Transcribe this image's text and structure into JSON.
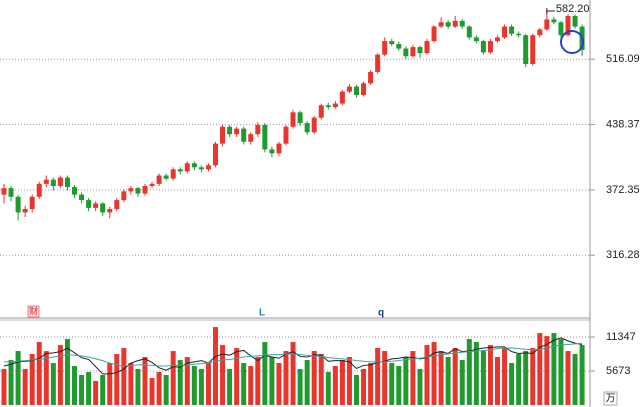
{
  "chart_data": [
    {
      "type": "candlestick",
      "log": true,
      "ylim": [
        270.4,
        598.4
      ],
      "yticks": [
        516.09,
        438.37,
        372.35,
        316.28
      ],
      "grid": true,
      "up_color": "#e8352e",
      "down_color": "#1e9a2e",
      "annotation": "582.20",
      "markers": [
        "财",
        "L",
        "q"
      ],
      "values": [
        [
          368,
          378,
          360,
          374
        ],
        [
          374,
          376,
          362,
          366
        ],
        [
          366,
          368,
          345,
          352
        ],
        [
          352,
          358,
          348,
          355
        ],
        [
          355,
          368,
          352,
          366
        ],
        [
          366,
          380,
          364,
          378
        ],
        [
          378,
          386,
          375,
          382
        ],
        [
          382,
          384,
          372,
          376
        ],
        [
          376,
          386,
          374,
          384
        ],
        [
          384,
          386,
          372,
          375
        ],
        [
          375,
          377,
          365,
          368
        ],
        [
          368,
          370,
          360,
          363
        ],
        [
          363,
          365,
          353,
          356
        ],
        [
          356,
          362,
          353,
          360
        ],
        [
          360,
          361,
          349,
          352
        ],
        [
          352,
          357,
          347,
          355
        ],
        [
          355,
          365,
          353,
          363
        ],
        [
          363,
          373,
          361,
          371
        ],
        [
          371,
          376,
          368,
          374
        ],
        [
          374,
          375,
          366,
          369
        ],
        [
          369,
          378,
          367,
          376
        ],
        [
          376,
          380,
          374,
          378
        ],
        [
          378,
          388,
          376,
          386
        ],
        [
          386,
          388,
          381,
          383
        ],
        [
          383,
          394,
          381,
          392
        ],
        [
          392,
          394,
          387,
          390
        ],
        [
          390,
          400,
          388,
          398
        ],
        [
          398,
          400,
          391,
          394
        ],
        [
          394,
          396,
          389,
          392
        ],
        [
          392,
          398,
          390,
          396
        ],
        [
          396,
          420,
          394,
          418
        ],
        [
          418,
          438,
          415,
          436
        ],
        [
          436,
          438,
          425,
          428
        ],
        [
          428,
          436,
          425,
          434
        ],
        [
          434,
          436,
          417,
          420
        ],
        [
          420,
          430,
          417,
          428
        ],
        [
          428,
          441,
          425,
          438
        ],
        [
          438,
          440,
          409,
          412
        ],
        [
          412,
          415,
          404,
          408
        ],
        [
          408,
          420,
          405,
          418
        ],
        [
          418,
          438,
          416,
          436
        ],
        [
          436,
          455,
          434,
          452
        ],
        [
          452,
          454,
          437,
          440
        ],
        [
          440,
          442,
          427,
          430
        ],
        [
          430,
          448,
          428,
          446
        ],
        [
          446,
          462,
          444,
          460
        ],
        [
          460,
          463,
          455,
          458
        ],
        [
          458,
          465,
          456,
          462
        ],
        [
          462,
          478,
          460,
          476
        ],
        [
          476,
          485,
          474,
          482
        ],
        [
          482,
          484,
          469,
          472
        ],
        [
          472,
          488,
          470,
          486
        ],
        [
          486,
          502,
          484,
          500
        ],
        [
          500,
          524,
          498,
          522
        ],
        [
          522,
          545,
          520,
          540
        ],
        [
          540,
          543,
          533,
          536
        ],
        [
          536,
          539,
          527,
          530
        ],
        [
          530,
          533,
          516,
          520
        ],
        [
          520,
          535,
          518,
          532
        ],
        [
          532,
          534,
          518,
          524
        ],
        [
          524,
          543,
          522,
          540
        ],
        [
          540,
          562,
          538,
          560
        ],
        [
          560,
          573,
          558,
          566
        ],
        [
          566,
          569,
          557,
          560
        ],
        [
          560,
          575,
          558,
          568
        ],
        [
          568,
          571,
          557,
          560
        ],
        [
          560,
          562,
          542,
          545
        ],
        [
          545,
          548,
          537,
          540
        ],
        [
          540,
          542,
          522,
          525
        ],
        [
          525,
          543,
          523,
          540
        ],
        [
          540,
          548,
          538,
          545
        ],
        [
          545,
          563,
          543,
          560
        ],
        [
          560,
          563,
          547,
          550
        ],
        [
          550,
          553,
          545,
          548
        ],
        [
          548,
          550,
          506,
          510
        ],
        [
          510,
          550,
          508,
          548
        ],
        [
          548,
          558,
          545,
          556
        ],
        [
          556,
          582.2,
          554,
          570
        ],
        [
          570,
          574,
          563,
          566
        ],
        [
          566,
          568,
          545,
          548
        ],
        [
          548,
          578,
          546,
          575
        ],
        [
          575,
          577,
          557,
          560
        ],
        [
          560,
          563,
          520,
          528
        ]
      ]
    },
    {
      "type": "volume",
      "ylim": [
        0,
        14180
      ],
      "yticks": [
        11347,
        5673
      ],
      "grid": true,
      "unit": "万",
      "values": [
        6000,
        7500,
        9000,
        6000,
        8500,
        10500,
        9000,
        7000,
        10000,
        11000,
        6500,
        5000,
        5500,
        4000,
        5000,
        7000,
        8500,
        9500,
        7000,
        6000,
        8000,
        4500,
        5500,
        5000,
        9000,
        7500,
        8000,
        6500,
        6000,
        7000,
        13000,
        10000,
        6000,
        9500,
        7000,
        6500,
        8000,
        10500,
        8000,
        7000,
        9000,
        10500,
        6000,
        7500,
        9000,
        8500,
        5500,
        6500,
        7500,
        8000,
        5000,
        6000,
        7000,
        9500,
        9000,
        7000,
        6500,
        8000,
        9000,
        6000,
        10000,
        10500,
        9000,
        8000,
        9500,
        7500,
        11000,
        10500,
        9000,
        10000,
        8000,
        9500,
        7000,
        8500,
        9000,
        9500,
        12000,
        11500,
        12000,
        11000,
        9000,
        8500,
        10000
      ],
      "lines": [
        {
          "color": "#222222",
          "values": [
            6500,
            6800,
            7200,
            7300,
            7400,
            7800,
            8600,
            8700,
            8900,
            9500,
            8700,
            7900,
            7600,
            6400,
            5200,
            5200,
            5400,
            6000,
            7000,
            7400,
            7700,
            7100,
            6200,
            5800,
            6400,
            6300,
            7000,
            7200,
            7400,
            7000,
            8100,
            8500,
            8300,
            8900,
            9100,
            8200,
            7400,
            8300,
            8000,
            7800,
            8500,
            8900,
            8100,
            8000,
            8400,
            8300,
            7300,
            7400,
            7400,
            7200,
            6100,
            6600,
            6700,
            7100,
            7300,
            7700,
            7800,
            8000,
            7900,
            7700,
            7900,
            8700,
            8900,
            8600,
            9400,
            8900,
            9000,
            9300,
            9500,
            9600,
            9700,
            9700,
            8900,
            8600,
            8700,
            8600,
            9600,
            10100,
            10800,
            11200,
            10700,
            10300,
            10100
          ]
        },
        {
          "color": "#3aa6a0",
          "values": [
            7200,
            7200,
            7300,
            7400,
            7500,
            7600,
            7800,
            8000,
            8200,
            8400,
            8300,
            8200,
            8000,
            7700,
            7400,
            7000,
            6700,
            6500,
            6600,
            6700,
            6700,
            6600,
            6500,
            6500,
            6600,
            6600,
            6700,
            6800,
            6900,
            7000,
            7300,
            7500,
            7600,
            7800,
            8000,
            8100,
            8200,
            8300,
            8400,
            8400,
            8500,
            8500,
            8400,
            8300,
            8200,
            8100,
            7900,
            7800,
            7700,
            7600,
            7400,
            7300,
            7200,
            7200,
            7200,
            7300,
            7400,
            7600,
            7700,
            7800,
            8000,
            8200,
            8400,
            8500,
            8700,
            8800,
            8900,
            9000,
            9100,
            9200,
            9400,
            9500,
            9500,
            9400,
            9300,
            9200,
            9300,
            9500,
            9800,
            10000,
            10100,
            10200,
            10300
          ]
        }
      ]
    }
  ]
}
